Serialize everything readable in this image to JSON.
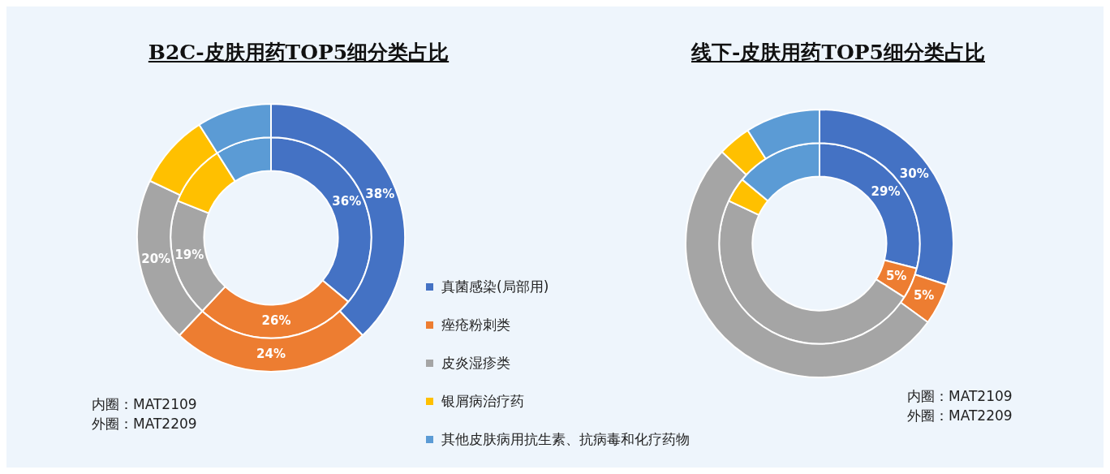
{
  "chart_data": [
    {
      "type": "donut",
      "title": "B2C-皮肤用药TOP5细分类占比",
      "categories": [
        "真菌感染(局部用)",
        "痤疮粉刺类",
        "皮炎湿疹类",
        "银屑病治疗药",
        "其他皮肤病用抗生素、抗病毒和化疗药物"
      ],
      "colors": [
        "#4472c4",
        "#ed7d31",
        "#a5a5a5",
        "#ffc000",
        "#5b9bd5"
      ],
      "series": [
        {
          "values": [
            36,
            26,
            19,
            10,
            9
          ],
          "value_labels": [
            "36%",
            "26%",
            "19%",
            null,
            null
          ]
        },
        {
          "values": [
            38,
            24,
            20,
            9,
            9
          ],
          "value_labels": [
            "38%",
            "24%",
            "20%",
            null,
            null
          ]
        }
      ],
      "legend": "right",
      "annotations": [
        "内圈：MAT2109",
        "外圈：MAT2209"
      ]
    },
    {
      "type": "donut",
      "title": "线下-皮肤用药TOP5细分类占比",
      "categories": [
        null,
        null,
        null,
        null,
        null
      ],
      "colors": [
        "#4472c4",
        "#ed7d31",
        "#a5a5a5",
        "#ffc000",
        "#5b9bd5"
      ],
      "series": [
        {
          "values": [
            29,
            5,
            48,
            4,
            14
          ],
          "value_labels": [
            "29%",
            "5%",
            null,
            null,
            null
          ]
        },
        {
          "values": [
            30,
            5,
            52,
            4,
            9
          ],
          "value_labels": [
            "30%",
            "5%",
            null,
            null,
            null
          ]
        }
      ],
      "annotations": [
        "内圈：MAT2109",
        "外圈：MAT2209"
      ]
    }
  ]
}
